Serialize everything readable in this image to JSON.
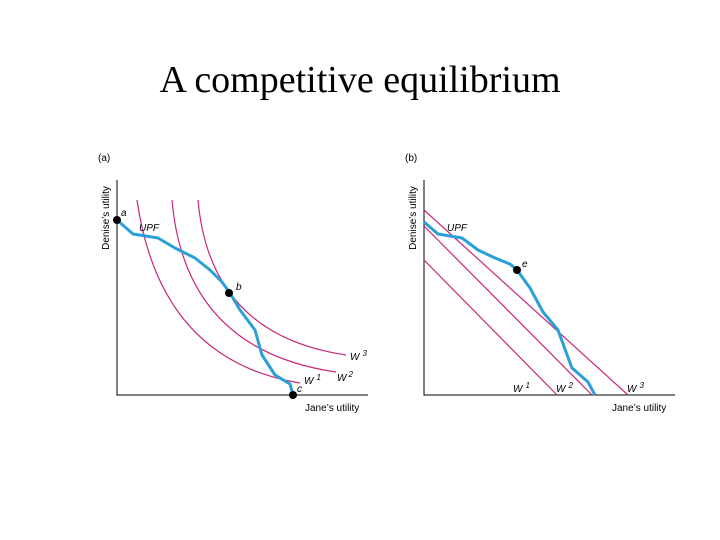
{
  "title": "A competitive equilibrium",
  "panels": [
    {
      "tag": "(a)",
      "y_axis_label": "Denise’s utility",
      "x_axis_label": "Jane’s utility",
      "curve_label": "UPF",
      "points": [
        "a",
        "b",
        "c"
      ],
      "welfare_labels": [
        {
          "letter": "W",
          "sup": "1"
        },
        {
          "letter": "W",
          "sup": "2"
        },
        {
          "letter": "W",
          "sup": "3"
        }
      ]
    },
    {
      "tag": "(b)",
      "y_axis_label": "Denise’s utility",
      "x_axis_label": "Jane’s utility",
      "curve_label": "UPF",
      "points": [
        "e"
      ],
      "welfare_labels": [
        {
          "letter": "W",
          "sup": "1"
        },
        {
          "letter": "W",
          "sup": "2"
        },
        {
          "letter": "W",
          "sup": "3"
        }
      ]
    }
  ]
}
